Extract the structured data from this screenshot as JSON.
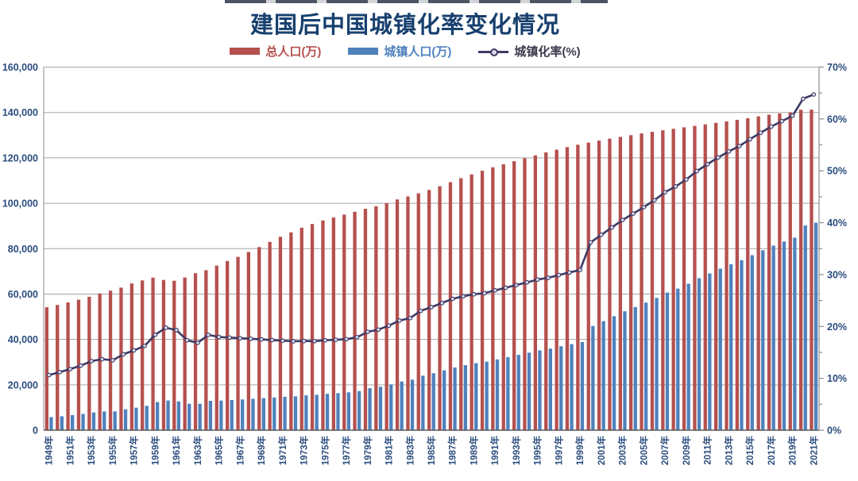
{
  "header": {
    "title": "建国后中国城镇化率变化情况"
  },
  "legend": {
    "items": [
      {
        "label": "总人口(万)",
        "type": "bar",
        "color": "#b5504e"
      },
      {
        "label": "城镇人口(万)",
        "type": "bar",
        "color": "#4f81bd"
      },
      {
        "label": "城镇化率(%)",
        "type": "line",
        "color": "#3e3a65"
      }
    ]
  },
  "colors": {
    "title": "#17406e",
    "axis_label": "#2b4d7e",
    "bar_total": "#b5504e",
    "bar_urban": "#4f81bd",
    "rate_line": "#3e3a65",
    "marker_fill": "#d9d8ea",
    "gridline": "#a6a6a6",
    "baseline": "#595959",
    "axis_line": "#8c8c8c"
  },
  "chart_data": {
    "type": "bar",
    "subtype": "grouped-bars-with-line",
    "title": "建国后中国城镇化率变化情况",
    "grid": "horizontal",
    "legend_position": "top-center",
    "categories": [
      1949,
      1950,
      1951,
      1952,
      1953,
      1954,
      1955,
      1956,
      1957,
      1958,
      1959,
      1960,
      1961,
      1962,
      1963,
      1964,
      1965,
      1966,
      1967,
      1968,
      1969,
      1970,
      1971,
      1972,
      1973,
      1974,
      1975,
      1976,
      1977,
      1978,
      1979,
      1980,
      1981,
      1982,
      1983,
      1984,
      1985,
      1986,
      1987,
      1988,
      1989,
      1990,
      1991,
      1992,
      1993,
      1994,
      1995,
      1996,
      1997,
      1998,
      1999,
      2000,
      2001,
      2002,
      2003,
      2004,
      2005,
      2006,
      2007,
      2008,
      2009,
      2010,
      2011,
      2012,
      2013,
      2014,
      2015,
      2016,
      2017,
      2018,
      2019,
      2020,
      2021
    ],
    "series": [
      {
        "name": "总人口(万)",
        "type": "bar",
        "axis": "left",
        "values": [
          54167,
          55196,
          56300,
          57482,
          58796,
          60266,
          61465,
          62828,
          64653,
          65994,
          67207,
          66207,
          65859,
          67295,
          69172,
          70499,
          72538,
          74542,
          76368,
          78534,
          80671,
          82992,
          85229,
          87177,
          89211,
          90859,
          92420,
          93717,
          94974,
          96259,
          97542,
          98705,
          100072,
          101654,
          103008,
          104357,
          105851,
          107507,
          109300,
          111026,
          112704,
          114333,
          115823,
          117171,
          118517,
          119850,
          121121,
          122389,
          123626,
          124761,
          125786,
          126743,
          127627,
          128453,
          129227,
          129988,
          130756,
          131448,
          132129,
          132802,
          133450,
          134091,
          134735,
          135404,
          136072,
          136782,
          137462,
          138271,
          139008,
          139538,
          140005,
          141178,
          141260
        ]
      },
      {
        "name": "城镇人口(万)",
        "type": "bar",
        "axis": "left",
        "values": [
          5765,
          6169,
          6632,
          7163,
          7826,
          8249,
          8285,
          9185,
          9949,
          10721,
          12371,
          13073,
          12707,
          11659,
          11646,
          12950,
          13045,
          13313,
          13548,
          13838,
          14117,
          14424,
          14711,
          14935,
          15345,
          15595,
          16030,
          16341,
          16669,
          17245,
          18495,
          19140,
          20171,
          21480,
          22274,
          24017,
          25094,
          26366,
          27674,
          28661,
          29540,
          30195,
          31203,
          32175,
          33173,
          34169,
          35174,
          35946,
          36989,
          37927,
          38855,
          45906,
          48064,
          50212,
          52376,
          54283,
          56212,
          58288,
          60633,
          62403,
          64512,
          66978,
          69079,
          71182,
          73111,
          74916,
          77116,
          79298,
          81347,
          83137,
          84843,
          90199,
          91425
        ]
      },
      {
        "name": "城镇化率(%)",
        "type": "line",
        "axis": "right",
        "values": [
          10.64,
          11.18,
          11.78,
          12.46,
          13.31,
          13.69,
          13.48,
          14.62,
          15.39,
          16.25,
          18.41,
          19.75,
          19.29,
          17.33,
          16.84,
          18.37,
          17.98,
          17.86,
          17.74,
          17.62,
          17.5,
          17.38,
          17.26,
          17.13,
          17.2,
          17.16,
          17.34,
          17.44,
          17.55,
          17.92,
          18.96,
          19.39,
          20.16,
          21.13,
          21.62,
          23.01,
          23.71,
          24.52,
          25.32,
          25.81,
          26.21,
          26.41,
          26.94,
          27.46,
          27.99,
          28.51,
          29.04,
          29.37,
          29.92,
          30.4,
          30.89,
          36.22,
          37.66,
          39.09,
          40.53,
          41.76,
          42.99,
          44.34,
          45.89,
          46.99,
          48.34,
          49.95,
          51.27,
          52.57,
          53.73,
          54.77,
          56.1,
          57.35,
          58.52,
          59.58,
          60.6,
          63.89,
          64.72
        ]
      }
    ],
    "left_axis": {
      "min": 0,
      "max": 160000,
      "step": 20000,
      "tick_labels": [
        "0",
        "20,000",
        "40,000",
        "60,000",
        "80,000",
        "100,000",
        "120,000",
        "140,000",
        "160,000"
      ]
    },
    "right_axis": {
      "min": 0,
      "max": 70,
      "step": 10,
      "minor_step": 5,
      "tick_labels": [
        "0%",
        "10%",
        "20%",
        "30%",
        "40%",
        "50%",
        "60%",
        "70%"
      ]
    },
    "x_axis": {
      "label_every_n_years": 2,
      "label_suffix": "年",
      "tick_labels": [
        "1949年",
        "1951年",
        "1953年",
        "1955年",
        "1957年",
        "1959年",
        "1961年",
        "1963年",
        "1965年",
        "1967年",
        "1969年",
        "1971年",
        "1973年",
        "1975年",
        "1977年",
        "1979年",
        "1981年",
        "1983年",
        "1985年",
        "1987年",
        "1989年",
        "1991年",
        "1993年",
        "1995年",
        "1997年",
        "1999年",
        "2001年",
        "2003年",
        "2005年",
        "2007年",
        "2009年",
        "2011年",
        "2013年",
        "2015年",
        "2017年",
        "2019年",
        "2021年"
      ]
    }
  }
}
